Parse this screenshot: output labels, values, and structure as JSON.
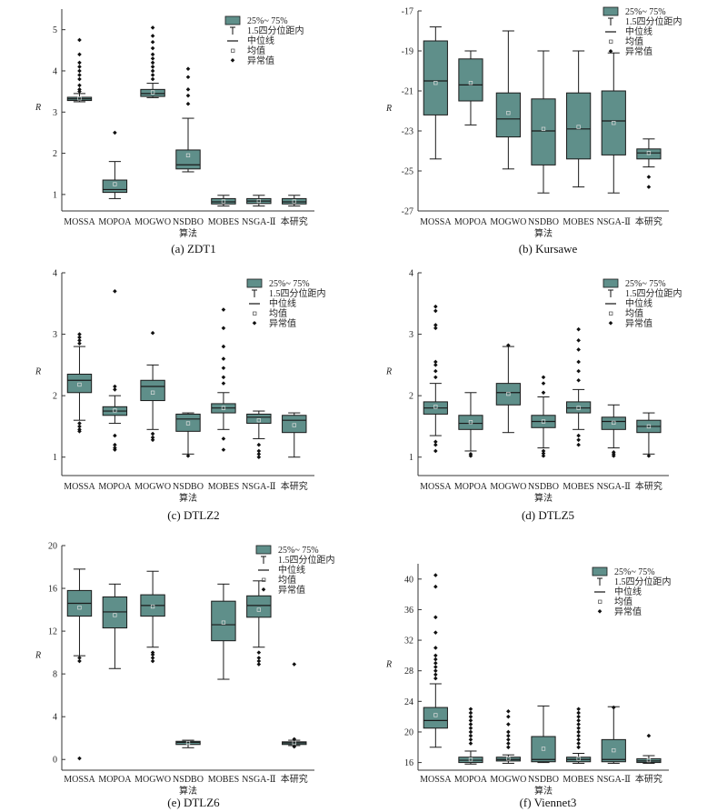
{
  "style": {
    "box_fill": "#5f8f8a",
    "box_stroke": "#1a1a1a",
    "axis_color": "#333333"
  },
  "legend": {
    "iqr": "25%~ 75%",
    "whisker": "1.5四分位距内",
    "median": "中位线",
    "mean": "均值",
    "outlier": "异常值"
  },
  "chart_data": [
    {
      "type": "box",
      "caption": "(a) ZDT1",
      "xlabel": "算法",
      "ylabel": "R",
      "ylim": [
        0.6,
        5.5
      ],
      "yticks": [
        1,
        2,
        3,
        4,
        5
      ],
      "categories": [
        "MOSSA",
        "MOPOA",
        "MOGWO",
        "NSDBO",
        "MOBES",
        "NSGA-Ⅱ",
        "本研究"
      ],
      "boxes": [
        {
          "wlo": 3.25,
          "q1": 3.28,
          "med": 3.32,
          "q3": 3.36,
          "whi": 3.45,
          "mean": 3.33,
          "outliers": [
            3.5,
            3.55,
            3.65,
            3.8,
            3.9,
            4.0,
            4.1,
            4.2,
            4.4,
            4.75
          ]
        },
        {
          "wlo": 0.9,
          "q1": 1.05,
          "med": 1.12,
          "q3": 1.35,
          "whi": 1.8,
          "mean": 1.25,
          "outliers": [
            2.5
          ]
        },
        {
          "wlo": 3.35,
          "q1": 3.38,
          "med": 3.45,
          "q3": 3.55,
          "whi": 3.7,
          "mean": 3.48,
          "outliers": [
            3.8,
            3.9,
            4.0,
            4.1,
            4.2,
            4.3,
            4.4,
            4.55,
            4.7,
            4.85,
            5.05
          ]
        },
        {
          "wlo": 1.55,
          "q1": 1.62,
          "med": 1.72,
          "q3": 2.08,
          "whi": 2.85,
          "mean": 1.95,
          "outliers": [
            3.2,
            3.4,
            3.55,
            3.85,
            4.05
          ]
        },
        {
          "wlo": 0.72,
          "q1": 0.77,
          "med": 0.82,
          "q3": 0.9,
          "whi": 0.98,
          "mean": 0.83,
          "outliers": []
        },
        {
          "wlo": 0.72,
          "q1": 0.78,
          "med": 0.84,
          "q3": 0.9,
          "whi": 0.98,
          "mean": 0.84,
          "outliers": []
        },
        {
          "wlo": 0.72,
          "q1": 0.77,
          "med": 0.82,
          "q3": 0.9,
          "whi": 0.98,
          "mean": 0.83,
          "outliers": []
        }
      ]
    },
    {
      "type": "box",
      "caption": "(b) Kursawe",
      "xlabel": "算法",
      "ylabel": "R",
      "ylim": [
        -27,
        -17
      ],
      "yticks": [
        -27,
        -25,
        -23,
        -21,
        -19,
        -17
      ],
      "categories": [
        "MOSSA",
        "MOPOA",
        "MOGWO",
        "NSDBO",
        "MOBES",
        "NSGA-Ⅱ",
        "本研究"
      ],
      "boxes": [
        {
          "wlo": -24.4,
          "q1": -22.2,
          "med": -20.5,
          "q3": -18.5,
          "whi": -17.8,
          "mean": -20.6,
          "outliers": []
        },
        {
          "wlo": -22.7,
          "q1": -21.5,
          "med": -20.7,
          "q3": -19.4,
          "whi": -19.0,
          "mean": -20.6,
          "outliers": []
        },
        {
          "wlo": -24.9,
          "q1": -23.3,
          "med": -22.4,
          "q3": -21.1,
          "whi": -18.0,
          "mean": -22.1,
          "outliers": []
        },
        {
          "wlo": -26.1,
          "q1": -24.7,
          "med": -23.0,
          "q3": -21.4,
          "whi": -19.0,
          "mean": -22.9,
          "outliers": []
        },
        {
          "wlo": -25.8,
          "q1": -24.4,
          "med": -22.9,
          "q3": -21.1,
          "whi": -19.0,
          "mean": -22.8,
          "outliers": []
        },
        {
          "wlo": -26.1,
          "q1": -24.2,
          "med": -22.5,
          "q3": -21.0,
          "whi": -19.1,
          "mean": -22.6,
          "outliers": []
        },
        {
          "wlo": -24.8,
          "q1": -24.4,
          "med": -24.1,
          "q3": -23.9,
          "whi": -23.4,
          "mean": -24.1,
          "outliers": [
            -25.3,
            -25.8
          ]
        }
      ]
    },
    {
      "type": "box",
      "caption": "(c) DTLZ2",
      "xlabel": "算法",
      "ylabel": "R",
      "ylim": [
        0.7,
        4.0
      ],
      "yticks": [
        1,
        2,
        3,
        4
      ],
      "categories": [
        "MOSSA",
        "MOPOA",
        "MOGWO",
        "NSDBO",
        "MOBES",
        "NSGA-Ⅱ",
        "本研究"
      ],
      "boxes": [
        {
          "wlo": 1.6,
          "q1": 2.05,
          "med": 2.25,
          "q3": 2.35,
          "whi": 2.8,
          "mean": 2.18,
          "outliers": [
            1.42,
            1.45,
            1.5,
            1.55,
            2.85,
            2.9,
            2.95,
            3.0
          ]
        },
        {
          "wlo": 1.55,
          "q1": 1.68,
          "med": 1.75,
          "q3": 1.82,
          "whi": 2.0,
          "mean": 1.76,
          "outliers": [
            1.12,
            1.15,
            1.2,
            1.35,
            2.1,
            2.15,
            3.7
          ]
        },
        {
          "wlo": 1.45,
          "q1": 1.92,
          "med": 2.15,
          "q3": 2.25,
          "whi": 2.5,
          "mean": 2.05,
          "outliers": [
            1.28,
            1.32,
            1.38,
            3.02
          ]
        },
        {
          "wlo": 1.05,
          "q1": 1.42,
          "med": 1.62,
          "q3": 1.7,
          "whi": 1.72,
          "mean": 1.55,
          "outliers": [
            1.02
          ]
        },
        {
          "wlo": 1.45,
          "q1": 1.72,
          "med": 1.8,
          "q3": 1.87,
          "whi": 2.05,
          "mean": 1.8,
          "outliers": [
            1.12,
            1.3,
            2.2,
            2.3,
            2.45,
            2.6,
            2.8,
            3.1,
            3.4
          ]
        },
        {
          "wlo": 1.3,
          "q1": 1.55,
          "med": 1.65,
          "q3": 1.7,
          "whi": 1.75,
          "mean": 1.6,
          "outliers": [
            1.0,
            1.05,
            1.1,
            1.2
          ]
        },
        {
          "wlo": 1.0,
          "q1": 1.4,
          "med": 1.6,
          "q3": 1.68,
          "whi": 1.72,
          "mean": 1.52,
          "outliers": []
        }
      ]
    },
    {
      "type": "box",
      "caption": "(d) DTLZ5",
      "xlabel": "算法",
      "ylabel": "R",
      "ylim": [
        0.7,
        4.0
      ],
      "yticks": [
        1,
        2,
        3,
        4
      ],
      "categories": [
        "MOSSA",
        "MOPOA",
        "MOGWO",
        "NSDBO",
        "MOBES",
        "NSGA-Ⅱ",
        "本研究"
      ],
      "boxes": [
        {
          "wlo": 1.35,
          "q1": 1.7,
          "med": 1.8,
          "q3": 1.9,
          "whi": 2.2,
          "mean": 1.82,
          "outliers": [
            1.1,
            1.2,
            1.25,
            2.3,
            2.4,
            2.5,
            2.55,
            3.1,
            3.15,
            3.38,
            3.45
          ]
        },
        {
          "wlo": 1.1,
          "q1": 1.45,
          "med": 1.55,
          "q3": 1.68,
          "whi": 2.05,
          "mean": 1.57,
          "outliers": [
            1.02,
            1.05
          ]
        },
        {
          "wlo": 1.4,
          "q1": 1.85,
          "med": 2.05,
          "q3": 2.2,
          "whi": 2.8,
          "mean": 2.03,
          "outliers": [
            2.82
          ]
        },
        {
          "wlo": 1.15,
          "q1": 1.48,
          "med": 1.58,
          "q3": 1.68,
          "whi": 1.98,
          "mean": 1.58,
          "outliers": [
            1.02,
            1.06,
            1.1,
            2.05,
            2.2,
            2.3
          ]
        },
        {
          "wlo": 1.45,
          "q1": 1.72,
          "med": 1.8,
          "q3": 1.9,
          "whi": 2.1,
          "mean": 1.8,
          "outliers": [
            1.2,
            1.28,
            1.35,
            2.25,
            2.4,
            2.55,
            2.75,
            2.9,
            3.08
          ]
        },
        {
          "wlo": 1.15,
          "q1": 1.45,
          "med": 1.58,
          "q3": 1.65,
          "whi": 1.85,
          "mean": 1.56,
          "outliers": [
            1.02,
            1.05,
            1.08
          ]
        },
        {
          "wlo": 1.05,
          "q1": 1.4,
          "med": 1.5,
          "q3": 1.6,
          "whi": 1.72,
          "mean": 1.5,
          "outliers": [
            1.02
          ]
        }
      ]
    },
    {
      "type": "box",
      "caption": "(e) DTLZ6",
      "xlabel": "算法",
      "ylabel": "R",
      "ylim": [
        -1,
        20
      ],
      "yticks": [
        0,
        4,
        8,
        12,
        16,
        20
      ],
      "categories": [
        "MOSSA",
        "MOPOA",
        "MOGWO",
        "NSDBO",
        "MOBES",
        "NSGA-Ⅱ",
        "本研究"
      ],
      "boxes": [
        {
          "wlo": 9.7,
          "q1": 13.4,
          "med": 14.6,
          "q3": 15.8,
          "whi": 17.8,
          "mean": 14.2,
          "outliers": [
            9.2,
            9.5,
            0.1
          ]
        },
        {
          "wlo": 8.5,
          "q1": 12.3,
          "med": 13.8,
          "q3": 15.2,
          "whi": 16.4,
          "mean": 13.5,
          "outliers": []
        },
        {
          "wlo": 10.5,
          "q1": 13.4,
          "med": 14.4,
          "q3": 15.4,
          "whi": 17.6,
          "mean": 14.3,
          "outliers": [
            9.2,
            9.5,
            9.8,
            10.0
          ]
        },
        {
          "wlo": 1.1,
          "q1": 1.4,
          "med": 1.6,
          "q3": 1.7,
          "whi": 1.8,
          "mean": 1.55,
          "outliers": []
        },
        {
          "wlo": 7.5,
          "q1": 11.1,
          "med": 12.6,
          "q3": 14.8,
          "whi": 16.4,
          "mean": 12.8,
          "outliers": []
        },
        {
          "wlo": 10.5,
          "q1": 13.3,
          "med": 14.4,
          "q3": 15.3,
          "whi": 16.7,
          "mean": 14.0,
          "outliers": [
            8.9,
            9.2,
            9.5,
            10.0
          ]
        },
        {
          "wlo": 1.3,
          "q1": 1.4,
          "med": 1.55,
          "q3": 1.65,
          "whi": 1.8,
          "mean": 1.55,
          "outliers": [
            1.2,
            1.9,
            8.9
          ]
        }
      ]
    },
    {
      "type": "box",
      "caption": "(f) Viennet3",
      "xlabel": "算法",
      "ylabel": "R",
      "ylim": [
        15,
        42
      ],
      "yticks": [
        16,
        20,
        24,
        28,
        32,
        36,
        40
      ],
      "categories": [
        "MOSSA",
        "MOPOA",
        "MOGWO",
        "NSDBO",
        "MOBES",
        "NSGA-Ⅱ",
        "本研究"
      ],
      "boxes": [
        {
          "wlo": 18.0,
          "q1": 20.5,
          "med": 21.5,
          "q3": 23.2,
          "whi": 26.3,
          "mean": 22.2,
          "outliers": [
            27,
            27.5,
            28,
            28.5,
            29,
            29.5,
            30,
            31,
            33,
            35,
            39,
            40.5
          ]
        },
        {
          "wlo": 15.8,
          "q1": 16.0,
          "med": 16.3,
          "q3": 16.7,
          "whi": 17.5,
          "mean": 16.4,
          "outliers": [
            18.5,
            19.0,
            19.5,
            20.0,
            20.5,
            21.0,
            21.5,
            22.0,
            22.5,
            23.0
          ]
        },
        {
          "wlo": 15.9,
          "q1": 16.2,
          "med": 16.4,
          "q3": 16.7,
          "whi": 17.0,
          "mean": 16.5,
          "outliers": [
            18.0,
            18.5,
            19.0,
            19.5,
            20.0,
            21.0,
            22.0,
            22.7
          ]
        },
        {
          "wlo": 16.0,
          "q1": 16.1,
          "med": 16.4,
          "q3": 19.4,
          "whi": 23.4,
          "mean": 17.8,
          "outliers": []
        },
        {
          "wlo": 15.9,
          "q1": 16.1,
          "med": 16.4,
          "q3": 16.7,
          "whi": 17.2,
          "mean": 16.5,
          "outliers": [
            18.0,
            18.5,
            19.0,
            19.5,
            20.0,
            20.5,
            21.0,
            21.5,
            22.0,
            22.5,
            23.0
          ]
        },
        {
          "wlo": 15.9,
          "q1": 16.1,
          "med": 16.4,
          "q3": 19.0,
          "whi": 23.3,
          "mean": 17.6,
          "outliers": [
            23.2
          ]
        },
        {
          "wlo": 15.9,
          "q1": 16.0,
          "med": 16.2,
          "q3": 16.5,
          "whi": 16.9,
          "mean": 16.3,
          "outliers": [
            19.5
          ]
        }
      ]
    }
  ]
}
